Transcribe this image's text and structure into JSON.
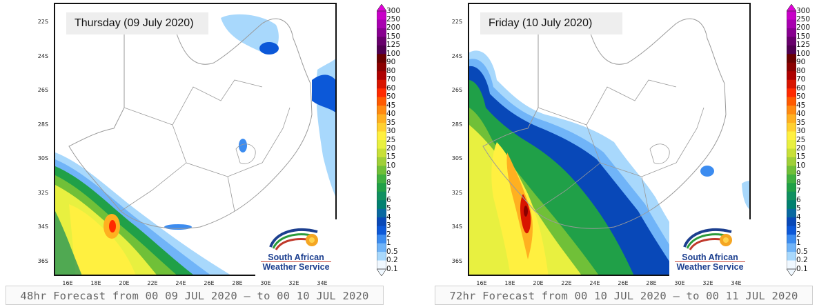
{
  "panels": [
    {
      "day_label": "Thursday (09 July 2020)",
      "caption": "48hr Forecast from 00 09 JUL 2020 – to 00 10 JUL 2020"
    },
    {
      "day_label": "Friday (10 July 2020)",
      "caption": "72hr Forecast from 00 10 JUL 2020 – to 00 11 JUL 2020"
    }
  ],
  "lat_labels": [
    "22S",
    "24S",
    "26S",
    "28S",
    "30S",
    "32S",
    "34S",
    "36S"
  ],
  "lon_labels": [
    "16E",
    "18E",
    "20E",
    "22E",
    "24E",
    "26E",
    "28E",
    "30E",
    "32E",
    "34E"
  ],
  "logo": {
    "line1": "South African",
    "line2": "Weather Service"
  },
  "colorbar": {
    "levels": [
      "300",
      "250",
      "200",
      "150",
      "125",
      "100",
      "90",
      "80",
      "70",
      "60",
      "50",
      "45",
      "40",
      "35",
      "30",
      "25",
      "20",
      "15",
      "10",
      "9",
      "8",
      "7",
      "6",
      "5",
      "4",
      "3",
      "2",
      "1",
      "0.5",
      "0.2",
      "0.1"
    ],
    "colors": [
      "#e000d8",
      "#c800c8",
      "#a800b0",
      "#880090",
      "#68006c",
      "#500050",
      "#6a0000",
      "#8a0000",
      "#ae0000",
      "#d81400",
      "#ff2a00",
      "#ff5a00",
      "#ff8a10",
      "#ffb020",
      "#ffd030",
      "#fff040",
      "#e8f040",
      "#c8e038",
      "#a0d038",
      "#70c038",
      "#40b040",
      "#20a048",
      "#109060",
      "#008070",
      "#0868a0",
      "#0848b8",
      "#0c58d8",
      "#3c8cf0",
      "#70b4f8",
      "#a8d8fc",
      "#f0f8ff"
    ]
  }
}
